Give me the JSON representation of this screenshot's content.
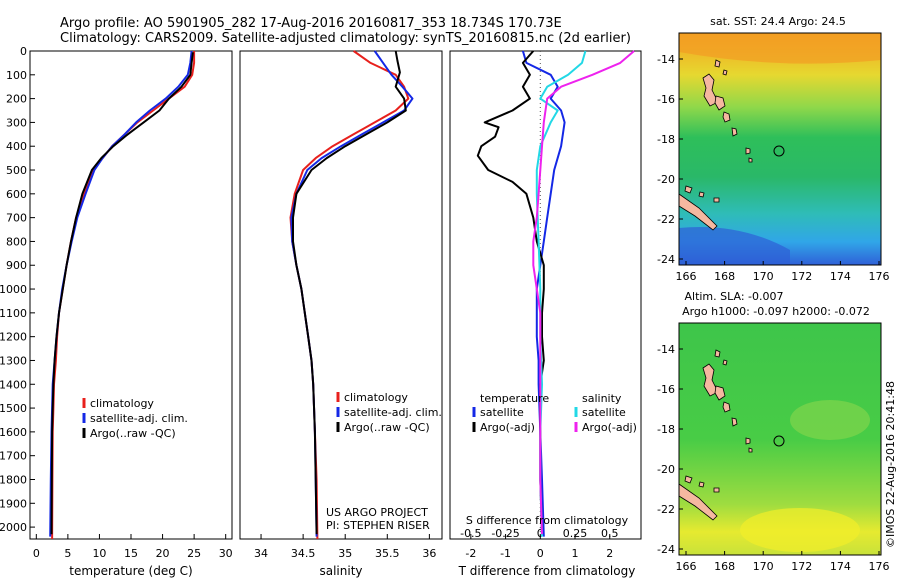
{
  "header": {
    "line1": "Argo profile: AO 5901905_282 17-Aug-2016 20160817_353 18.734S 170.73E",
    "line2": "Climatology: CARS2009. Satellite-adjusted climatology: synTS_20160815.nc (2d earlier)"
  },
  "colors": {
    "climatology": "#e8201c",
    "satellite": "#1428e6",
    "argo": "#000000",
    "sat_salinity": "#22d8e6",
    "argo_salinity": "#ee22ee"
  },
  "chart_data": [
    {
      "type": "line",
      "name": "temperature",
      "xlabel": "temperature (deg C)",
      "ylabel": "",
      "xlim": [
        -1,
        31
      ],
      "ylim": [
        2050,
        0
      ],
      "xticks": [
        0,
        5,
        10,
        15,
        20,
        25,
        30
      ],
      "yticks": [
        0,
        100,
        200,
        300,
        400,
        500,
        600,
        700,
        800,
        900,
        1000,
        1100,
        1200,
        1300,
        1400,
        1500,
        1600,
        1700,
        1800,
        1900,
        2000
      ],
      "legend": [
        "climatology",
        "satellite-adj. clim.",
        "Argo(..raw -QC)"
      ],
      "series": [
        {
          "name": "climatology",
          "points": [
            [
              25,
              0
            ],
            [
              25,
              50
            ],
            [
              24.7,
              100
            ],
            [
              23.5,
              150
            ],
            [
              21,
              200
            ],
            [
              18.5,
              250
            ],
            [
              16,
              300
            ],
            [
              14,
              350
            ],
            [
              12,
              400
            ],
            [
              10.5,
              450
            ],
            [
              9,
              500
            ],
            [
              7.6,
              600
            ],
            [
              6.3,
              700
            ],
            [
              5.5,
              800
            ],
            [
              4.8,
              900
            ],
            [
              4.2,
              1000
            ],
            [
              3.6,
              1100
            ],
            [
              3.3,
              1200
            ],
            [
              3.1,
              1300
            ],
            [
              2.8,
              1400
            ],
            [
              2.7,
              1500
            ],
            [
              2.6,
              1600
            ],
            [
              2.55,
              1800
            ],
            [
              2.5,
              2050
            ]
          ]
        },
        {
          "name": "satellite-adj. clim.",
          "points": [
            [
              24.6,
              0
            ],
            [
              24.4,
              50
            ],
            [
              24,
              100
            ],
            [
              22.5,
              150
            ],
            [
              20.5,
              200
            ],
            [
              18,
              250
            ],
            [
              15.8,
              300
            ],
            [
              14,
              350
            ],
            [
              12,
              400
            ],
            [
              10.5,
              450
            ],
            [
              9.2,
              500
            ],
            [
              7.8,
              600
            ],
            [
              6.5,
              700
            ],
            [
              5.6,
              800
            ],
            [
              4.8,
              900
            ],
            [
              4.1,
              1000
            ],
            [
              3.6,
              1100
            ],
            [
              3.2,
              1200
            ],
            [
              2.9,
              1300
            ],
            [
              2.6,
              1400
            ],
            [
              2.5,
              1500
            ],
            [
              2.4,
              1600
            ],
            [
              2.3,
              1800
            ],
            [
              2.2,
              2040
            ]
          ]
        },
        {
          "name": "Argo(..raw -QC)",
          "points": [
            [
              24.8,
              5
            ],
            [
              24.6,
              50
            ],
            [
              24.4,
              100
            ],
            [
              23,
              150
            ],
            [
              21,
              200
            ],
            [
              19.5,
              250
            ],
            [
              17,
              300
            ],
            [
              14.5,
              350
            ],
            [
              12.2,
              400
            ],
            [
              10.3,
              450
            ],
            [
              8.8,
              500
            ],
            [
              7.3,
              600
            ],
            [
              6.3,
              700
            ],
            [
              5.5,
              800
            ],
            [
              4.8,
              900
            ],
            [
              4.2,
              1000
            ],
            [
              3.6,
              1100
            ],
            [
              3.2,
              1200
            ],
            [
              2.9,
              1300
            ],
            [
              2.7,
              1400
            ],
            [
              2.6,
              1500
            ],
            [
              2.5,
              1600
            ],
            [
              2.45,
              1800
            ],
            [
              2.4,
              2030
            ]
          ]
        }
      ]
    },
    {
      "type": "line",
      "name": "salinity",
      "xlabel": "salinity",
      "xlim": [
        33.75,
        36.15
      ],
      "ylim": [
        2050,
        0
      ],
      "xticks": [
        34,
        34.5,
        35,
        35.5,
        36
      ],
      "legend": [
        "climatology",
        "satellite-adj. clim.",
        "Argo(..raw -QC)"
      ],
      "annotation": [
        "US ARGO PROJECT",
        "PI: STEPHEN RISER"
      ],
      "series": [
        {
          "name": "climatology",
          "points": [
            [
              35.1,
              0
            ],
            [
              35.3,
              50
            ],
            [
              35.6,
              100
            ],
            [
              35.7,
              150
            ],
            [
              35.75,
              200
            ],
            [
              35.6,
              250
            ],
            [
              35.35,
              300
            ],
            [
              35.1,
              350
            ],
            [
              34.85,
              400
            ],
            [
              34.65,
              450
            ],
            [
              34.5,
              500
            ],
            [
              34.4,
              600
            ],
            [
              34.35,
              700
            ],
            [
              34.37,
              800
            ],
            [
              34.42,
              900
            ],
            [
              34.48,
              1000
            ],
            [
              34.52,
              1100
            ],
            [
              34.56,
              1200
            ],
            [
              34.6,
              1300
            ],
            [
              34.62,
              1400
            ],
            [
              34.64,
              1600
            ],
            [
              34.66,
              1800
            ],
            [
              34.67,
              2050
            ]
          ]
        },
        {
          "name": "satellite-adj. clim.",
          "points": [
            [
              35.35,
              0
            ],
            [
              35.45,
              50
            ],
            [
              35.55,
              100
            ],
            [
              35.68,
              150
            ],
            [
              35.8,
              200
            ],
            [
              35.7,
              250
            ],
            [
              35.45,
              300
            ],
            [
              35.2,
              350
            ],
            [
              34.95,
              400
            ],
            [
              34.72,
              450
            ],
            [
              34.55,
              500
            ],
            [
              34.42,
              600
            ],
            [
              34.36,
              700
            ],
            [
              34.37,
              800
            ],
            [
              34.42,
              900
            ],
            [
              34.48,
              1000
            ],
            [
              34.52,
              1100
            ],
            [
              34.56,
              1200
            ],
            [
              34.6,
              1300
            ],
            [
              34.62,
              1400
            ],
            [
              34.64,
              1600
            ],
            [
              34.65,
              1800
            ],
            [
              34.66,
              2040
            ]
          ]
        },
        {
          "name": "Argo(..raw -QC)",
          "points": [
            [
              35.6,
              0
            ],
            [
              35.62,
              40
            ],
            [
              35.65,
              90
            ],
            [
              35.6,
              150
            ],
            [
              35.7,
              200
            ],
            [
              35.72,
              250
            ],
            [
              35.5,
              300
            ],
            [
              35.25,
              350
            ],
            [
              35.0,
              400
            ],
            [
              34.78,
              450
            ],
            [
              34.6,
              500
            ],
            [
              34.42,
              600
            ],
            [
              34.38,
              700
            ],
            [
              34.38,
              800
            ],
            [
              34.42,
              900
            ],
            [
              34.48,
              1000
            ],
            [
              34.52,
              1100
            ],
            [
              34.56,
              1200
            ],
            [
              34.6,
              1300
            ],
            [
              34.62,
              1400
            ],
            [
              34.64,
              1600
            ],
            [
              34.65,
              1800
            ],
            [
              34.66,
              2030
            ]
          ]
        }
      ]
    },
    {
      "type": "line",
      "name": "difference",
      "xlabel_s": "S difference from climatology",
      "xlabel_t": "T difference from climatology",
      "xlim": [
        -2.6,
        2.9
      ],
      "ylim": [
        2050,
        0
      ],
      "xticks_t": [
        -2,
        -1,
        0,
        1,
        2
      ],
      "xticks_s": [
        -0.5,
        -0.25,
        0,
        0.25,
        0.5
      ],
      "legend_t_title": "temperature",
      "legend_s_title": "salinity",
      "legend": [
        "satellite",
        "Argo(-adj)",
        "satellite",
        "Argo(-adj)"
      ],
      "series": [
        {
          "name": "temperature satellite",
          "points": [
            [
              -0.5,
              0
            ],
            [
              -0.4,
              50
            ],
            [
              0.3,
              100
            ],
            [
              0.5,
              150
            ],
            [
              0.3,
              200
            ],
            [
              0.6,
              250
            ],
            [
              0.7,
              300
            ],
            [
              0.6,
              400
            ],
            [
              0.4,
              500
            ],
            [
              0.3,
              600
            ],
            [
              0.2,
              700
            ],
            [
              0.1,
              800
            ],
            [
              0,
              900
            ],
            [
              -0.1,
              1000
            ],
            [
              -0.1,
              1100
            ],
            [
              -0.1,
              1200
            ],
            [
              -0.05,
              1300
            ],
            [
              -0.05,
              1400
            ],
            [
              0,
              1600
            ],
            [
              0.05,
              1800
            ],
            [
              0.1,
              2040
            ]
          ]
        },
        {
          "name": "temperature Argo(-adj)",
          "points": [
            [
              -0.2,
              0
            ],
            [
              -0.5,
              50
            ],
            [
              -0.3,
              100
            ],
            [
              -0.5,
              150
            ],
            [
              -0.3,
              200
            ],
            [
              -0.8,
              250
            ],
            [
              -1.6,
              300
            ],
            [
              -1.2,
              320
            ],
            [
              -1.3,
              360
            ],
            [
              -1.7,
              400
            ],
            [
              -1.8,
              440
            ],
            [
              -1.5,
              500
            ],
            [
              -0.8,
              550
            ],
            [
              -0.4,
              600
            ],
            [
              -0.2,
              700
            ],
            [
              -0.1,
              800
            ],
            [
              0.1,
              900
            ],
            [
              0.1,
              1000
            ],
            [
              0.05,
              1100
            ],
            [
              0.05,
              1200
            ],
            [
              0.1,
              1300
            ],
            [
              0,
              1400
            ],
            [
              0,
              1600
            ],
            [
              0,
              1800
            ],
            [
              0.05,
              2030
            ]
          ]
        },
        {
          "name": "salinity satellite",
          "points": [
            [
              1.3,
              0
            ],
            [
              1.2,
              50
            ],
            [
              0.8,
              100
            ],
            [
              0.2,
              150
            ],
            [
              0,
              200
            ],
            [
              0.5,
              250
            ],
            [
              0.3,
              300
            ],
            [
              0,
              400
            ],
            [
              -0.1,
              500
            ],
            [
              -0.1,
              600
            ],
            [
              -0.05,
              800
            ],
            [
              0,
              1000
            ],
            [
              0,
              1200
            ],
            [
              0.05,
              1400
            ],
            [
              0,
              1600
            ],
            [
              0,
              1800
            ],
            [
              0.05,
              2040
            ]
          ]
        },
        {
          "name": "salinity Argo(-adj)",
          "points": [
            [
              2.7,
              0
            ],
            [
              2.3,
              50
            ],
            [
              1.5,
              100
            ],
            [
              0.6,
              150
            ],
            [
              0.2,
              200
            ],
            [
              0.1,
              300
            ],
            [
              0.05,
              400
            ],
            [
              0,
              500
            ],
            [
              -0.05,
              600
            ],
            [
              -0.1,
              700
            ],
            [
              -0.2,
              800
            ],
            [
              -0.2,
              900
            ],
            [
              -0.1,
              1000
            ],
            [
              0,
              1100
            ],
            [
              0,
              1200
            ],
            [
              0,
              1400
            ],
            [
              0,
              1600
            ],
            [
              0,
              1800
            ],
            [
              0.05,
              2030
            ]
          ]
        }
      ]
    }
  ],
  "maps": [
    {
      "title": "sat. SST: 24.4  Argo: 24.5",
      "yticks": [
        "-14",
        "-16",
        "-18",
        "-20",
        "-22",
        "-24"
      ],
      "xticks": [
        "166",
        "168",
        "170",
        "172",
        "174",
        "176"
      ]
    },
    {
      "title1": "Altim. SLA: -0.007",
      "title2": "Argo h1000: -0.097 h2000: -0.072",
      "yticks": [
        "-14",
        "-16",
        "-18",
        "-20",
        "-22",
        "-24"
      ],
      "xticks": [
        "166",
        "168",
        "170",
        "172",
        "174",
        "176"
      ]
    }
  ],
  "credit": "©IMOS 22-Aug-2016 20:41:48"
}
